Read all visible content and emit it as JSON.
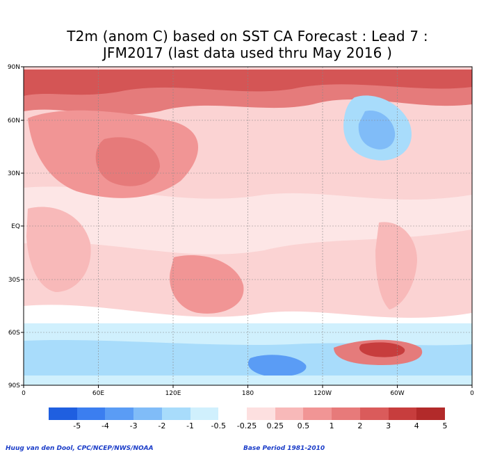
{
  "title": {
    "line1": "T2m (anom C) based on SST CA Forecast : Lead 7 :",
    "line2": "JFM2017 (last data used thru May 2016 )"
  },
  "map": {
    "lat_labels": [
      "90N",
      "60N",
      "30N",
      "EQ",
      "30S",
      "60S",
      "90S"
    ],
    "lon_labels": [
      "0",
      "60E",
      "120E",
      "180",
      "120W",
      "60W",
      "0"
    ]
  },
  "colorbar": {
    "colors": [
      "#1f5fe0",
      "#3b7ef0",
      "#5a9cf5",
      "#80bcf8",
      "#a8dcfb",
      "#d0f0fd",
      "#ffffff",
      "#fde0e0",
      "#f8b9b9",
      "#f19595",
      "#e77a7a",
      "#da5b5b",
      "#c73d3d",
      "#b22a2a"
    ],
    "labels": [
      "-5",
      "-4",
      "-3",
      "-2",
      "-1",
      "-0.5",
      "-0.25",
      "0.25",
      "0.5",
      "1",
      "2",
      "3",
      "4",
      "5"
    ]
  },
  "footer": {
    "credit": "Huug van den Dool, CPC/NCEP/NWS/NOAA",
    "base_period": "Base Period 1981-2010"
  }
}
